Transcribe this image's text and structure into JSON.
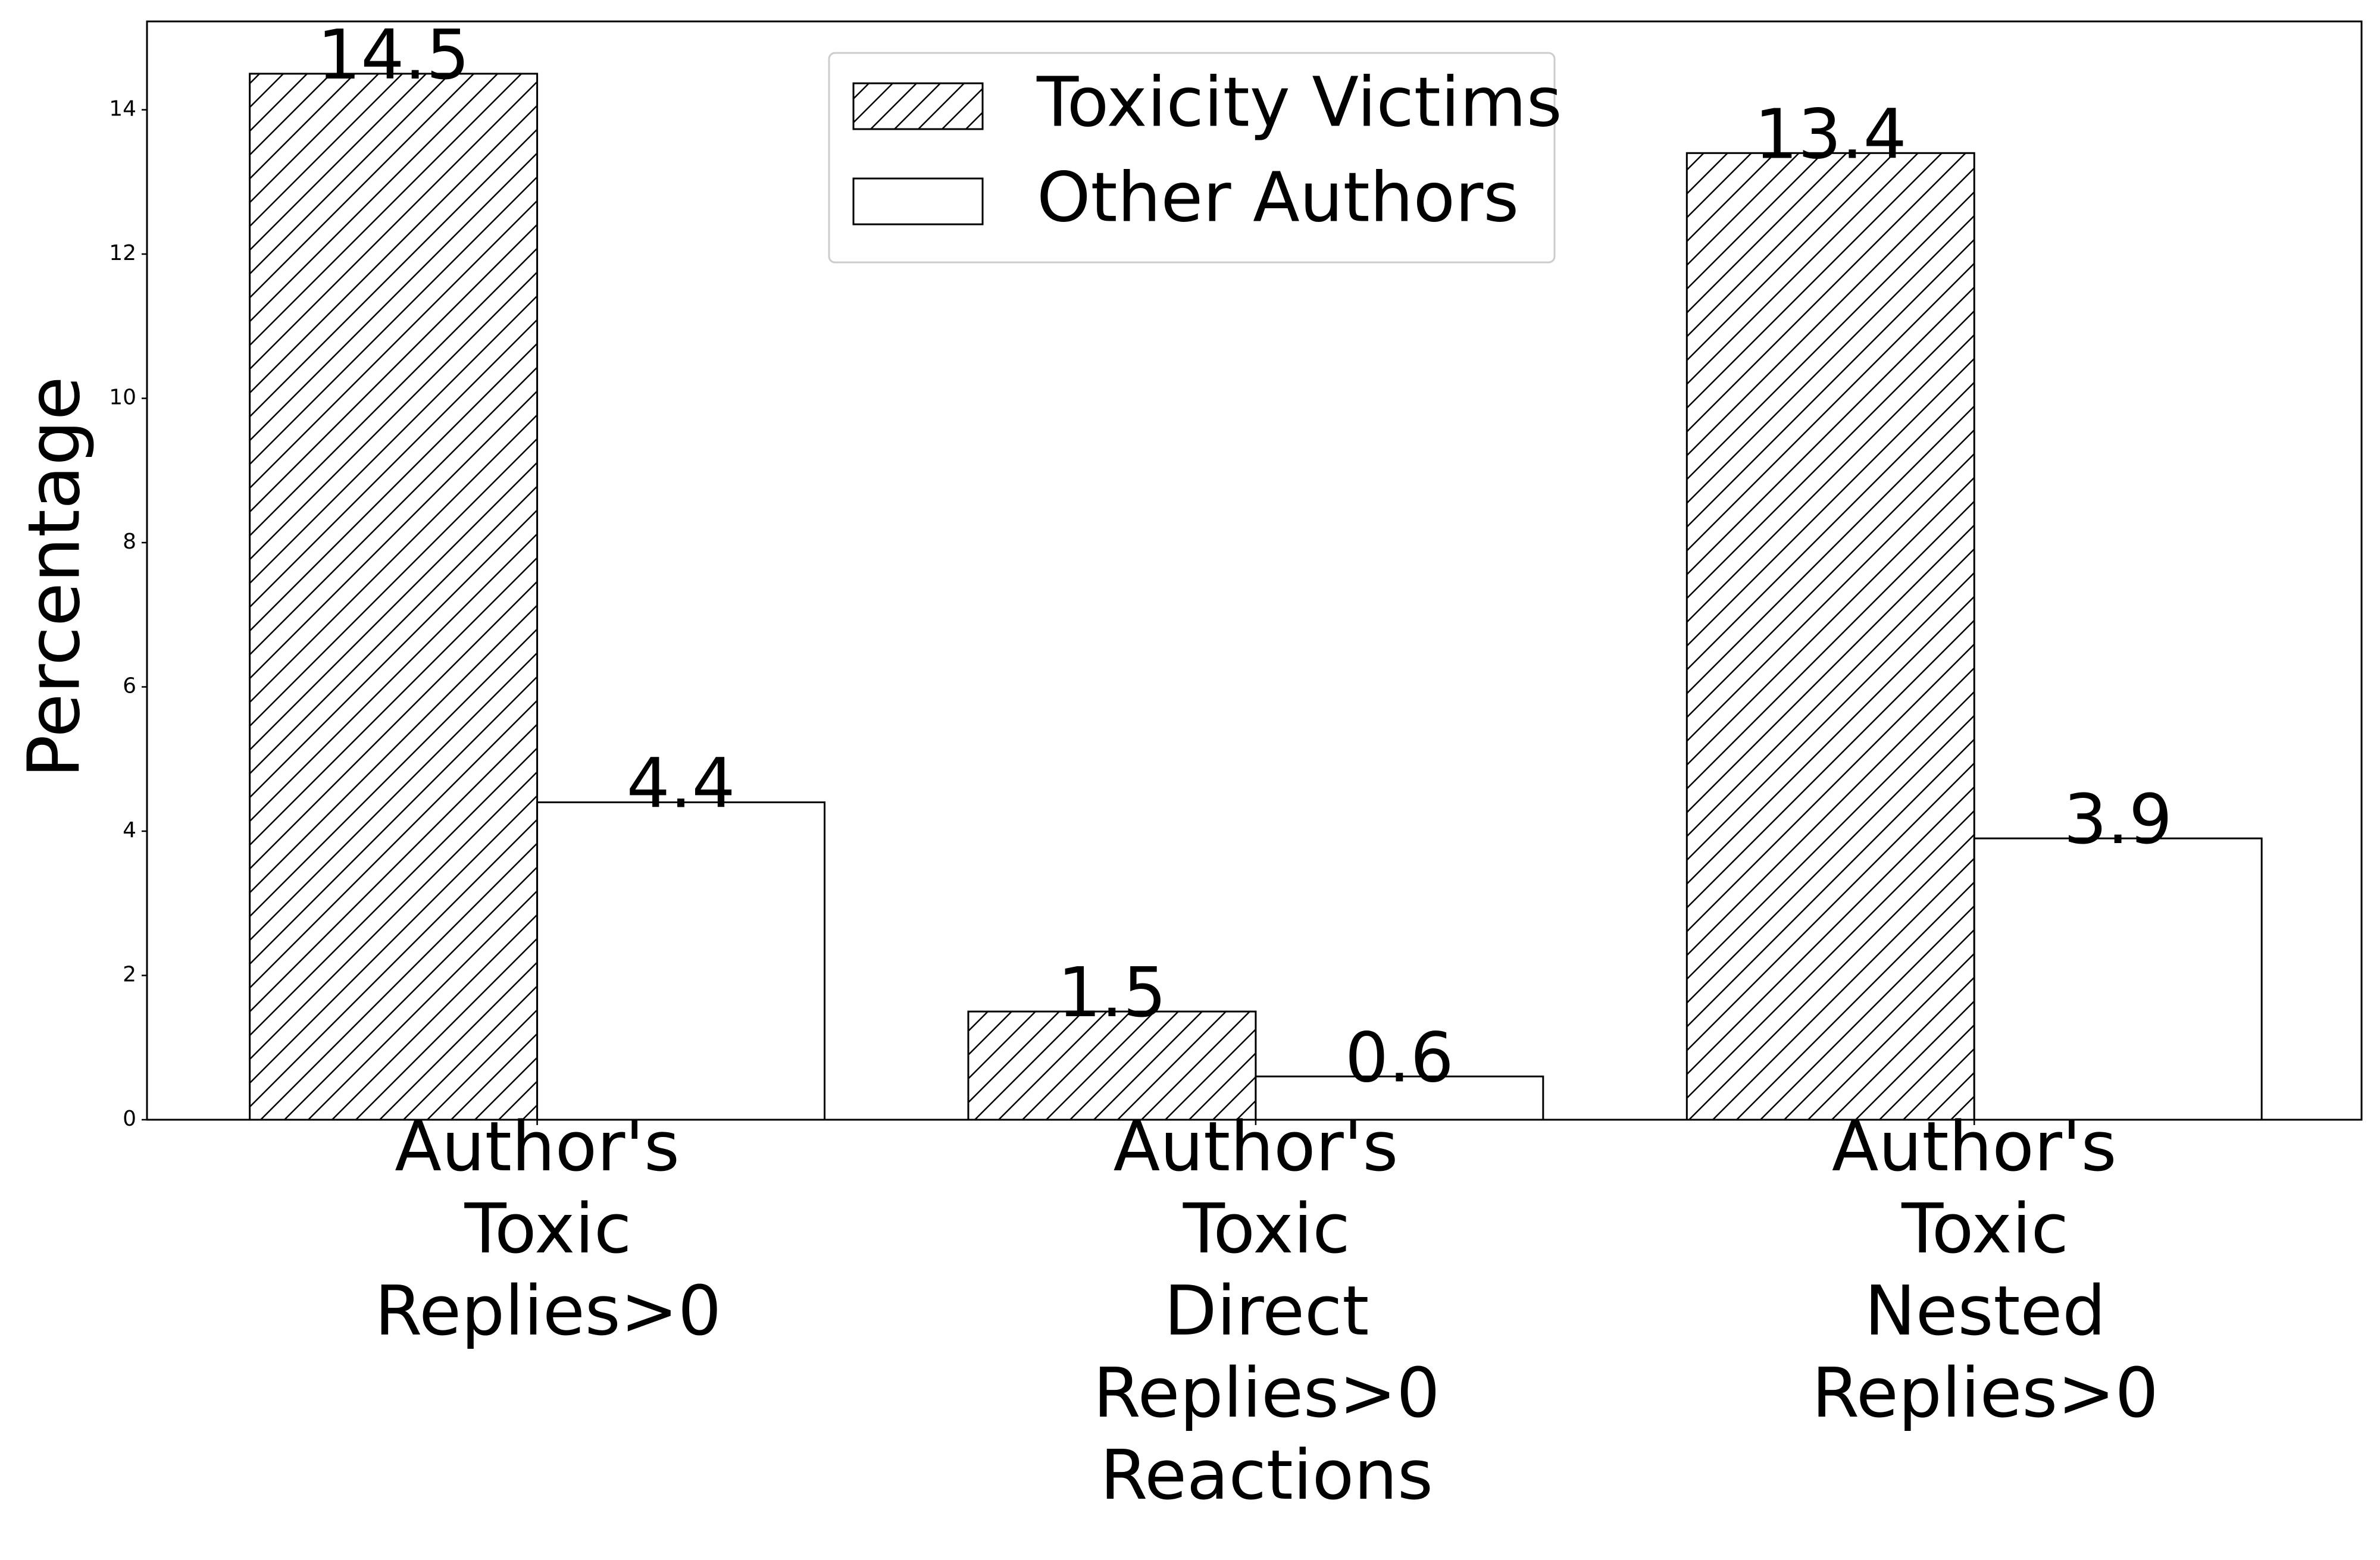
{
  "chart_data": {
    "type": "bar",
    "categories": [
      "Author's Toxic Replies>0",
      "Author's Toxic Direct Replies>0 Reactions",
      "Author's Toxic Nested Replies>0"
    ],
    "series": [
      {
        "name": "Toxicity Victims",
        "color": "#ffffff",
        "hatch": "//",
        "values": [
          14.5,
          1.5,
          13.4
        ]
      },
      {
        "name": "Other Authors",
        "color": "#ffffff",
        "values": [
          4.4,
          0.6,
          3.9
        ]
      }
    ],
    "y_label": "Percentage",
    "ylim": [
      0,
      15.225
    ],
    "yticks": [
      0,
      2,
      4,
      6,
      8,
      10,
      12,
      14
    ],
    "legend": "upper center"
  }
}
